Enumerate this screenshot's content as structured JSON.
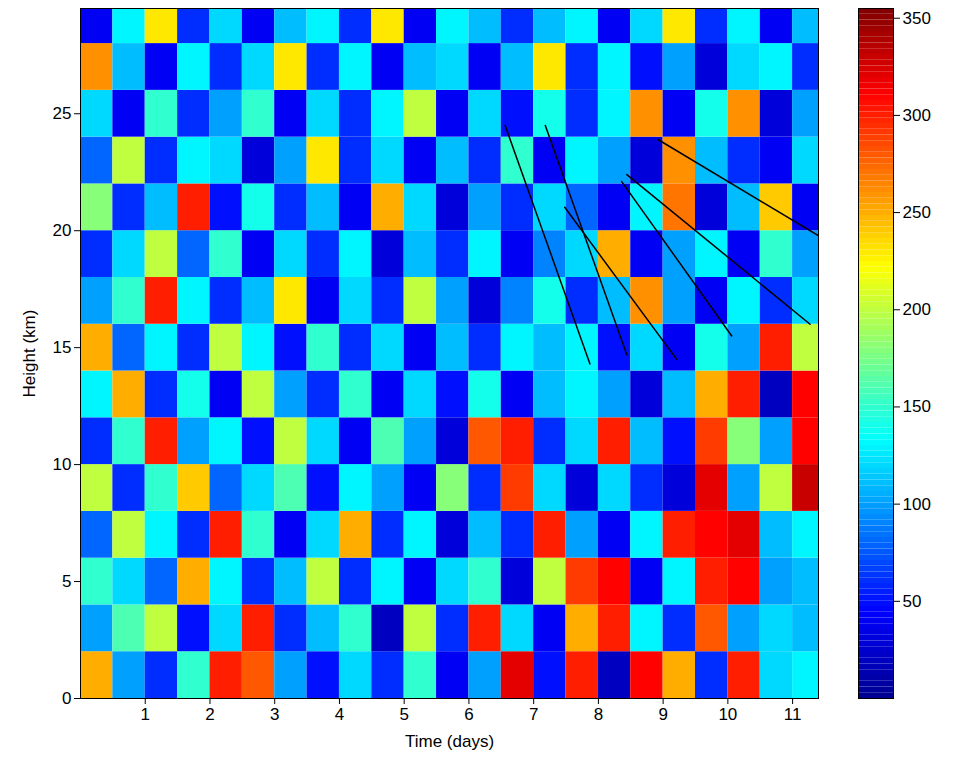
{
  "chart_data": {
    "type": "heatmap",
    "xlabel": "Time (days)",
    "ylabel": "Height (km)",
    "xlim": [
      0,
      11.4
    ],
    "xticks": [
      1,
      2,
      3,
      4,
      5,
      6,
      7,
      8,
      9,
      10,
      11
    ],
    "ylim": [
      0,
      29.5
    ],
    "yticks": [
      0,
      5,
      10,
      15,
      20,
      25
    ],
    "x_edges": [
      0,
      0.5,
      1,
      1.5,
      2,
      2.5,
      3,
      3.5,
      4,
      4.5,
      5,
      5.5,
      6,
      6.5,
      7,
      7.5,
      8,
      8.5,
      9,
      9.5,
      10,
      10.5,
      11,
      11.5
    ],
    "y_edges": [
      0,
      2,
      4,
      6,
      8,
      10,
      12,
      14,
      16,
      18,
      20,
      22,
      24,
      26,
      28,
      30
    ],
    "cells": [
      [
        250,
        100,
        60,
        150,
        300,
        280,
        100,
        50,
        120,
        60,
        150,
        40,
        100,
        320,
        50,
        300,
        20,
        310,
        250,
        60,
        300,
        120,
        130
      ],
      [
        100,
        160,
        200,
        50,
        120,
        300,
        60,
        110,
        150,
        20,
        200,
        60,
        300,
        120,
        40,
        250,
        300,
        130,
        60,
        280,
        100,
        120,
        110
      ],
      [
        150,
        120,
        80,
        250,
        130,
        60,
        110,
        200,
        60,
        130,
        40,
        120,
        150,
        30,
        200,
        290,
        310,
        40,
        130,
        300,
        310,
        100,
        110
      ],
      [
        80,
        200,
        130,
        60,
        300,
        150,
        40,
        120,
        250,
        60,
        130,
        30,
        110,
        60,
        300,
        100,
        40,
        130,
        300,
        310,
        320,
        110,
        130
      ],
      [
        200,
        60,
        150,
        240,
        80,
        120,
        160,
        50,
        130,
        100,
        40,
        180,
        60,
        290,
        120,
        30,
        120,
        60,
        30,
        320,
        100,
        200,
        330
      ],
      [
        60,
        150,
        300,
        100,
        130,
        50,
        200,
        120,
        40,
        160,
        100,
        30,
        280,
        300,
        60,
        120,
        300,
        110,
        50,
        290,
        180,
        100,
        310
      ],
      [
        130,
        250,
        60,
        140,
        40,
        200,
        100,
        60,
        150,
        40,
        120,
        50,
        140,
        40,
        110,
        130,
        100,
        30,
        110,
        250,
        300,
        20,
        310
      ],
      [
        250,
        80,
        130,
        60,
        200,
        130,
        50,
        150,
        60,
        120,
        40,
        110,
        60,
        130,
        110,
        130,
        50,
        120,
        40,
        140,
        100,
        300,
        200
      ],
      [
        100,
        150,
        300,
        130,
        60,
        110,
        230,
        40,
        120,
        60,
        200,
        100,
        30,
        90,
        140,
        60,
        110,
        260,
        100,
        40,
        130,
        60,
        120
      ],
      [
        60,
        120,
        200,
        80,
        150,
        40,
        120,
        60,
        130,
        30,
        110,
        60,
        130,
        40,
        90,
        120,
        250,
        40,
        100,
        130,
        40,
        150,
        100
      ],
      [
        180,
        60,
        110,
        300,
        50,
        140,
        60,
        110,
        40,
        250,
        120,
        30,
        100,
        60,
        120,
        80,
        40,
        130,
        270,
        30,
        110,
        240,
        40
      ],
      [
        80,
        200,
        60,
        130,
        120,
        30,
        100,
        230,
        60,
        120,
        40,
        110,
        60,
        150,
        40,
        130,
        100,
        30,
        260,
        110,
        60,
        40,
        120
      ],
      [
        120,
        40,
        150,
        60,
        100,
        150,
        40,
        120,
        60,
        130,
        200,
        40,
        120,
        50,
        140,
        60,
        130,
        260,
        40,
        140,
        260,
        30,
        100
      ],
      [
        260,
        110,
        40,
        130,
        60,
        120,
        230,
        60,
        130,
        40,
        110,
        120,
        40,
        110,
        230,
        60,
        130,
        50,
        100,
        30,
        120,
        130,
        60
      ],
      [
        40,
        130,
        230,
        60,
        120,
        40,
        110,
        130,
        60,
        230,
        40,
        130,
        110,
        60,
        110,
        130,
        40,
        120,
        230,
        60,
        130,
        40,
        110
      ]
    ],
    "clim": [
      0,
      355
    ],
    "cticks": [
      50,
      100,
      150,
      200,
      250,
      300,
      350
    ],
    "lines": [
      {
        "x": [
          6.56,
          7.87
        ],
        "y": [
          24.5,
          14.3
        ]
      },
      {
        "x": [
          7.18,
          8.44
        ],
        "y": [
          24.5,
          14.7
        ]
      },
      {
        "x": [
          7.48,
          9.21
        ],
        "y": [
          21.0,
          14.5
        ]
      },
      {
        "x": [
          8.36,
          10.06
        ],
        "y": [
          22.1,
          15.5
        ]
      },
      {
        "x": [
          8.44,
          11.27
        ],
        "y": [
          22.4,
          16.0
        ]
      },
      {
        "x": [
          8.92,
          11.39
        ],
        "y": [
          23.9,
          19.8
        ]
      }
    ]
  }
}
